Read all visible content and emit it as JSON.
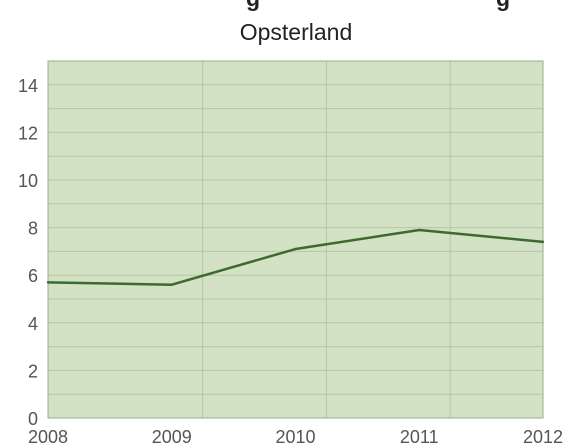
{
  "chart_data": {
    "type": "line",
    "title_partial": "g",
    "title_partial_right": "g",
    "subtitle": "Opsterland",
    "xlabel": "",
    "ylabel": "",
    "x": [
      2008,
      2009,
      2010,
      2011,
      2012
    ],
    "x_tick_labels": [
      "2008",
      "2009",
      "2010",
      "2011",
      "2012"
    ],
    "y_ticks": [
      0,
      2,
      4,
      6,
      8,
      10,
      12,
      14
    ],
    "y_tick_labels": [
      "0",
      "2",
      "4",
      "6",
      "8",
      "10",
      "12",
      "14"
    ],
    "ylim": [
      0,
      15
    ],
    "grid": true,
    "series": [
      {
        "name": "",
        "values": [
          5.7,
          5.6,
          7.1,
          7.9,
          7.4
        ]
      }
    ],
    "colors": {
      "plot_background": "#d3e2c4",
      "line": "#3c6a30",
      "grid": "#b4c6a6",
      "border": "#9aab8c"
    }
  }
}
